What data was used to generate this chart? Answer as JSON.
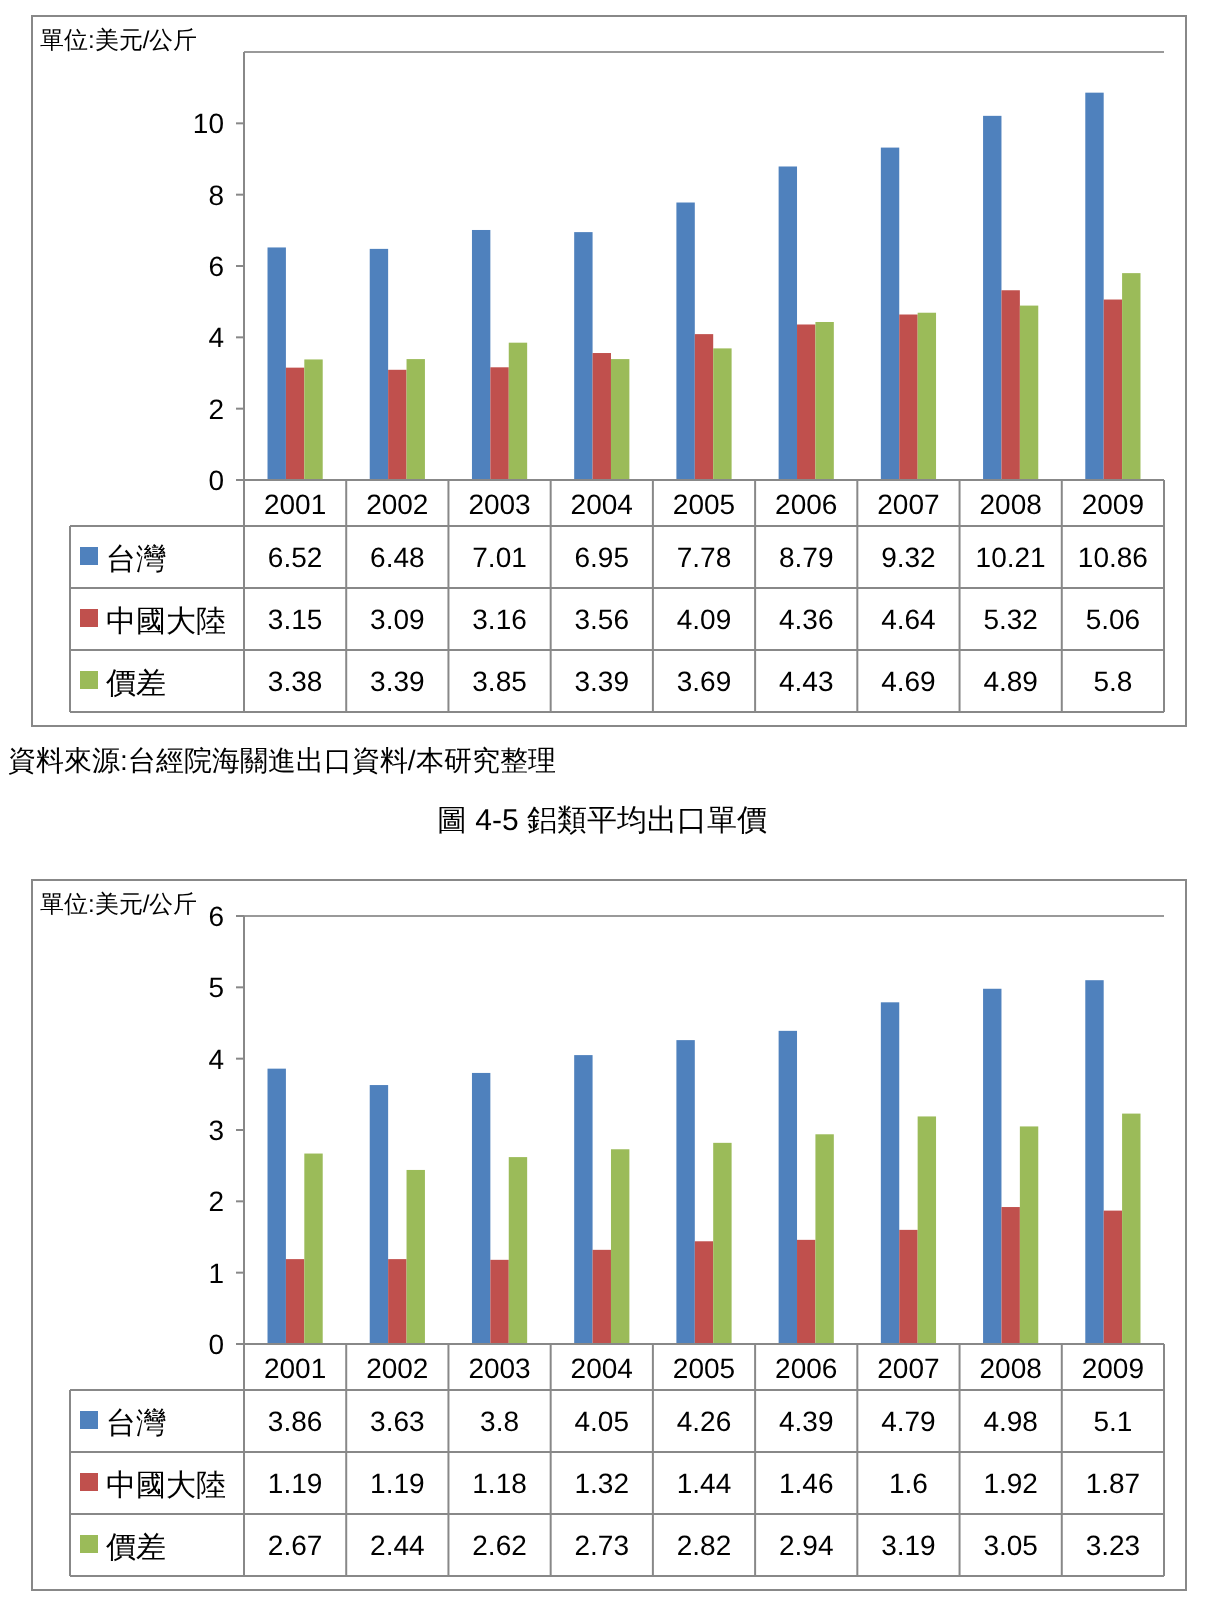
{
  "chart_data": [
    {
      "type": "bar",
      "ylabel": "單位:美元/公斤",
      "categories": [
        "2001",
        "2002",
        "2003",
        "2004",
        "2005",
        "2006",
        "2007",
        "2008",
        "2009"
      ],
      "series": [
        {
          "name": "台灣",
          "color": "#4f81bd",
          "values": [
            6.52,
            6.48,
            7.01,
            6.95,
            7.78,
            8.79,
            9.32,
            10.21,
            10.86
          ]
        },
        {
          "name": "中國大陸",
          "color": "#c0504d",
          "values": [
            3.15,
            3.09,
            3.16,
            3.56,
            4.09,
            4.36,
            4.64,
            5.32,
            5.06
          ]
        },
        {
          "name": "價差",
          "color": "#9bbb59",
          "values": [
            3.38,
            3.39,
            3.85,
            3.39,
            3.69,
            4.43,
            4.69,
            4.89,
            5.8
          ]
        }
      ],
      "ylim": [
        0,
        12
      ],
      "yticks": [
        0,
        2,
        4,
        6,
        8,
        10
      ],
      "data_labels": true,
      "legend": "bottom left",
      "annotations": [
        "資料來源:台經院海關進出口資料/本研究整理",
        "圖 4-5 鋁類平均出口單價"
      ]
    },
    {
      "type": "bar",
      "ylabel": "單位:美元/公斤",
      "categories": [
        "2001",
        "2002",
        "2003",
        "2004",
        "2005",
        "2006",
        "2007",
        "2008",
        "2009"
      ],
      "series": [
        {
          "name": "台灣",
          "color": "#4f81bd",
          "values": [
            3.86,
            3.63,
            3.8,
            4.05,
            4.26,
            4.39,
            4.79,
            4.98,
            5.1
          ]
        },
        {
          "name": "中國大陸",
          "color": "#c0504d",
          "values": [
            1.19,
            1.19,
            1.18,
            1.32,
            1.44,
            1.46,
            1.6,
            1.92,
            1.87
          ]
        },
        {
          "name": "價差",
          "color": "#9bbb59",
          "values": [
            2.67,
            2.44,
            2.62,
            2.73,
            2.82,
            2.94,
            3.19,
            3.05,
            3.23
          ]
        }
      ],
      "ylim": [
        0,
        6
      ],
      "yticks": [
        0,
        1,
        2,
        3,
        4,
        5,
        6
      ],
      "data_labels": true,
      "legend": "bottom left"
    }
  ]
}
